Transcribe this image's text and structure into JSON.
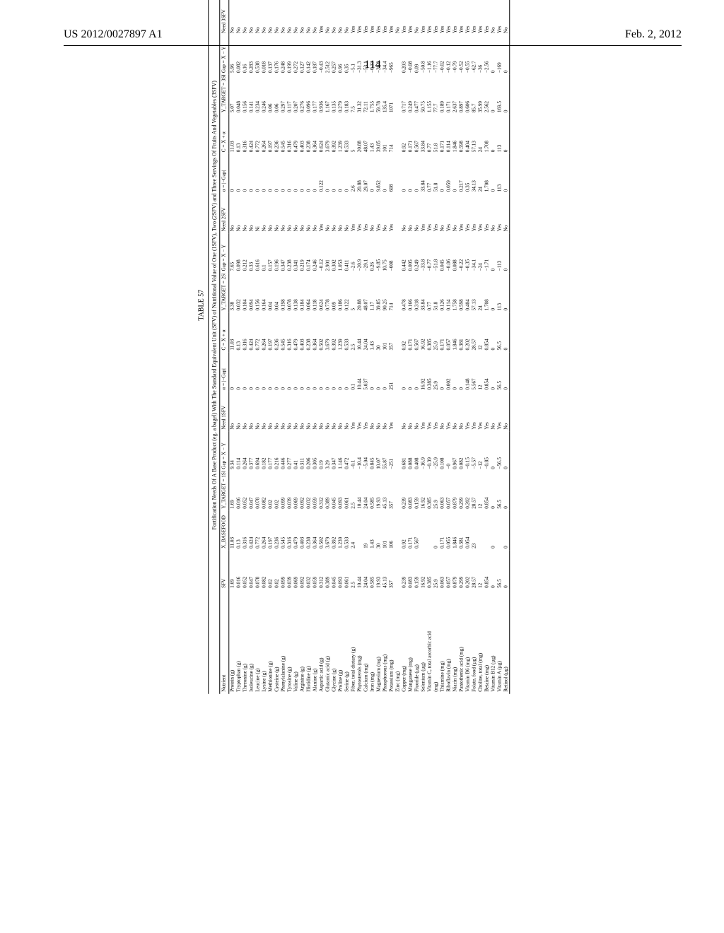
{
  "header": {
    "left": "US 2012/0027897 A1",
    "right": "Feb. 2, 2012"
  },
  "page_number": "114",
  "table": {
    "label": "TABLE 57",
    "subcaption": "Fortification Needs Of A Base Product (eg. a bagel) With The Standard Equivalent Unit (SFV) of Nutritional Value of One (1SFV), Two (2SFV) and Three Servings Of Fruits And Vegetables (3SFV)",
    "columns": [
      "Nutrient",
      "SFV",
      "X_BASEFOOD",
      "Y_TARGET = 1SFV",
      "Gap = X − Y",
      "Need 1SFV",
      "α = |−Gap|",
      "C = X + α",
      "Y_TARGET = 2SFV",
      "Gap = X − Y",
      "Need 2SFV",
      "α = |−Gap|",
      "C = X + α",
      "Y_TARGET = 3SFV",
      "Gap = X − Y",
      "Need 3SFV",
      "α = |−Gap|",
      "C = X + α"
    ],
    "rows": [
      [
        "Protein (g)",
        "1.69",
        "11.03",
        "1.69",
        "9.34",
        "No",
        "0",
        "11.03",
        "3.38",
        "7.65",
        "No",
        "0",
        "11.03",
        "5.07",
        "5.96",
        "No",
        "0",
        "11.03"
      ],
      [
        "Tryptophan (g)",
        "0.016",
        "0.13",
        "0.016",
        "0.114",
        "No",
        "0",
        "0.13",
        "0.032",
        "0.098",
        "No",
        "0",
        "0.13",
        "0.048",
        "0.082",
        "No",
        "0",
        "0.13"
      ],
      [
        "Threonine (g)",
        "0.052",
        "0.316",
        "0.052",
        "0.264",
        "No",
        "0",
        "0.316",
        "0.104",
        "0.212",
        "No",
        "0",
        "0.316",
        "0.156",
        "0.16",
        "No",
        "0",
        "0.316"
      ],
      [
        "Isoleucine (g)",
        "0.047",
        "0.424",
        "0.047",
        "0.377",
        "No",
        "0",
        "0.424",
        "0.094",
        "0.33",
        "No",
        "0",
        "0.424",
        "0.141",
        "0.283",
        "No",
        "0",
        "0.424"
      ],
      [
        "Leucine (g)",
        "0.078",
        "0.772",
        "0.078",
        "0.694",
        "No",
        "0",
        "0.772",
        "0.156",
        "0.616",
        "Ni",
        "0",
        "0.772",
        "0.234",
        "0.538",
        "No",
        "0",
        "0.772"
      ],
      [
        "Lysine (g)",
        "0.082",
        "0.264",
        "0.082",
        "0.182",
        "No",
        "0",
        "0.264",
        "0.164",
        "0.1",
        "No",
        "0",
        "0.264",
        "0.246",
        "0.018",
        "No",
        "0",
        "0.264"
      ],
      [
        "Methionine (g)",
        "0.02",
        "0.197",
        "0.02",
        "0.177",
        "No",
        "0",
        "0.197",
        "0.04",
        "0.157",
        "No",
        "0",
        "0.197",
        "0.06",
        "0.137",
        "No",
        "0",
        "0.197"
      ],
      [
        "Cysteine (g)",
        "0.02",
        "0.236",
        "0.02",
        "0.216",
        "No",
        "0",
        "0.236",
        "0.04",
        "0.196",
        "No",
        "0",
        "0.236",
        "0.06",
        "0.176",
        "No",
        "0",
        "0.236"
      ],
      [
        "Phenylalanine (g)",
        "0.099",
        "0.545",
        "0.099",
        "0.446",
        "No",
        "0",
        "0.545",
        "0.198",
        "0.347",
        "No",
        "0",
        "0.545",
        "0.297",
        "0.248",
        "No",
        "0",
        "0.545"
      ],
      [
        "Tyrosine (g)",
        "0.039",
        "0.316",
        "0.039",
        "0.277",
        "No",
        "0",
        "0.316",
        "0.078",
        "0.238",
        "No",
        "0",
        "0.316",
        "0.117",
        "0.199",
        "No",
        "0",
        "0.316"
      ],
      [
        "Valine (g)",
        "0.069",
        "0.479",
        "0.069",
        "0.41",
        "No",
        "0",
        "0.479",
        "0.138",
        "0.341",
        "No",
        "0",
        "0.479",
        "0.207",
        "0.272",
        "No",
        "0",
        "0.479"
      ],
      [
        "Arginine (g)",
        "0.092",
        "0.403",
        "0.092",
        "0.311",
        "No",
        "0",
        "0.403",
        "0.184",
        "0.219",
        "No",
        "0",
        "0.403",
        "0.276",
        "0.127",
        "No",
        "0",
        "0.403"
      ],
      [
        "Histidine (g)",
        "0.032",
        "0.238",
        "0.032",
        "0.206",
        "No",
        "0",
        "0.238",
        "0.064",
        "0.174",
        "No",
        "0",
        "0.238",
        "0.096",
        "0.142",
        "No",
        "0",
        "0.238"
      ],
      [
        "Alanine (g)",
        "0.059",
        "0.364",
        "0.059",
        "0.305",
        "No",
        "0",
        "0.364",
        "0.118",
        "0.246",
        "No",
        "0",
        "0.364",
        "0.177",
        "0.187",
        "No",
        "0",
        "0.364"
      ],
      [
        "Aspartic acid (g)",
        "0.312",
        "0.502",
        "0.312",
        "0.19",
        "No",
        "0",
        "0.502",
        "0.624",
        "−0.12",
        "Yes",
        "0.122",
        "0.624",
        "0.936",
        "−0.43",
        "Yes",
        "0.434",
        "0.936"
      ],
      [
        "Glutamic acid (g)",
        "0.389",
        "3.679",
        "0.389",
        "3.29",
        "No",
        "0",
        "3.679",
        "0.778",
        "2.901",
        "No",
        "0",
        "3.679",
        "1.167",
        "2.512",
        "No",
        "0",
        "3.679"
      ],
      [
        "Glycine (g)",
        "0.045",
        "0.392",
        "0.045",
        "0.347",
        "No",
        "0",
        "0.392",
        "0.09",
        "0.302",
        "No",
        "0",
        "0.392",
        "0.135",
        "0.257",
        "No",
        "0",
        "0.392"
      ],
      [
        "Proline (g)",
        "0.093",
        "1.239",
        "0.093",
        "1.146",
        "No",
        "0",
        "1.239",
        "0.186",
        "1.053",
        "No",
        "0",
        "1.239",
        "0.279",
        "0.96",
        "No",
        "0",
        "1.239"
      ],
      [
        "Serine (g)",
        "0.061",
        "0.533",
        "0.061",
        "0.472",
        "No",
        "0",
        "0.533",
        "0.122",
        "0.411",
        "No",
        "0",
        "0.533",
        "0.183",
        "0.35",
        "No",
        "0",
        "0.533"
      ],
      [
        "Fiber, total dietary (g)",
        "2.5",
        "2.4",
        "2.5",
        "−0.1",
        "Yes",
        "0.1",
        "2.5",
        "5",
        "−2.6",
        "Yes",
        "2.6",
        "5",
        "7.5",
        "−5.1",
        "Yes",
        "5.1",
        "7.5"
      ],
      [
        "Phytosterols (mg)",
        "10.44",
        "",
        "10.44",
        "−10.4",
        "Yes",
        "10.44",
        "10.44",
        "20.88",
        "−20.9",
        "Yes",
        "20.88",
        "20.88",
        "31.32",
        "−31.3",
        "Yes",
        "31.32",
        "31.32"
      ],
      [
        "Calcium (mg)",
        "24.04",
        "19",
        "24.04",
        "−5.04",
        "Yes",
        "5.037",
        "24.04",
        "48.07",
        "−29.1",
        "Yes",
        "29.07",
        "48.07",
        "72.11",
        "−53.1",
        "Yes",
        "53.11",
        "72.11"
      ],
      [
        "Iron (mg)",
        "0.585",
        "1.43",
        "0.585",
        "0.845",
        "No",
        "0",
        "1.43",
        "1.17",
        "0.26",
        "No",
        "0",
        "1.43",
        "1.755",
        "−0.33",
        "Yes",
        "0",
        "1.43"
      ],
      [
        "Magnesium (mg)",
        "19.93",
        "30",
        "19.93",
        "10.07",
        "No",
        "0",
        "30",
        "39.85",
        "−9.85",
        "Yes",
        "9.852",
        "39.85",
        "59.78",
        "−29.8",
        "Yes",
        "0",
        "30"
      ],
      [
        "Phosphorous (mg)",
        "45.13",
        "101",
        "45.13",
        "55.87",
        "No",
        "0",
        "101",
        "90.25",
        "10.75",
        "No",
        "0",
        "101",
        "135.4",
        "−34.4",
        "Yes",
        "0",
        "101"
      ],
      [
        "Potassium (mg)",
        "357",
        "106",
        "357",
        "−251",
        "Yes",
        "251",
        "357",
        "714",
        "−608",
        "Yes",
        "608",
        "714",
        "1071",
        "−965",
        "Yes",
        "965",
        "1071"
      ],
      [
        "Zinc (mg)",
        "",
        "",
        "",
        "",
        "",
        "",
        "",
        "",
        "",
        "",
        "",
        "",
        "",
        "",
        "No",
        "",
        ""
      ],
      [
        "Copper (mg)",
        "0.239",
        "0.92",
        "0.239",
        "0.681",
        "No",
        "0",
        "0.92",
        "0.478",
        "0.442",
        "No",
        "0",
        "0.92",
        "0.717",
        "0.203",
        "Yes",
        "0",
        "0.92"
      ],
      [
        "Manganese (mg)",
        "0.083",
        "0.171",
        "0.083",
        "0.088",
        "No",
        "0",
        "0.171",
        "0.166",
        "0.005",
        "No",
        "0",
        "0.171",
        "0.249",
        "−0.08",
        "Yes",
        "0",
        "0.171"
      ],
      [
        "Fluoride (µg)",
        "0.159",
        "0.567",
        "0.159",
        "0.408",
        "No",
        "0",
        "0.567",
        "0.318",
        "0.249",
        "No",
        "0",
        "0.567",
        "0.477",
        "0.09",
        "No",
        "0",
        "0.567"
      ],
      [
        "Selenium (µg)",
        "16.92",
        "",
        "16.92",
        "−16.9",
        "Yes",
        "16.92",
        "16.92",
        "33.84",
        "−33.8",
        "Yes",
        "33.84",
        "33.84",
        "50.75",
        "−50.8",
        "Yes",
        "50.75",
        "50.75"
      ],
      [
        "Vitamin C, total ascorbic acid",
        "0.385",
        "",
        "0.385",
        "−0.39",
        "Yes",
        "0.385",
        "0.385",
        "0.77",
        "−0.77",
        "Yes",
        "0.77",
        "0.77",
        "1.155",
        "−1.16",
        "Yes",
        "1.155",
        "1.155"
      ],
      [
        "(mg)",
        "25.9",
        "0",
        "25.9",
        "−25.9",
        "Yes",
        "25.9",
        "25.9",
        "51.8",
        "−51.8",
        "Yes",
        "51.8",
        "51.8",
        "77.7",
        "−77.7",
        "Yes",
        "77.7",
        "77.7"
      ],
      [
        "Thiamine (mg)",
        "0.063",
        "0.171",
        "0.063",
        "0.108",
        "No",
        "0",
        "0.171",
        "0.126",
        "0.045",
        "No",
        "0",
        "0.171",
        "0.189",
        "−0.02",
        "Yes",
        "0.018",
        "0.189"
      ],
      [
        "Riboflavin (mg)",
        "0.057",
        "0.055",
        "0.057",
        "−0",
        "Yes",
        "0.002",
        "0.057",
        "0.114",
        "−0.06",
        "Yes",
        "0.059",
        "0.114",
        "0.171",
        "−0.12",
        "Yes",
        "0.116",
        "0.171"
      ],
      [
        "Niacin (mg)",
        "0.879",
        "1.846",
        "0.879",
        "0.967",
        "No",
        "0",
        "1.846",
        "1.758",
        "0.088",
        "No",
        "0",
        "1.846",
        "2.637",
        "−0.79",
        "Yes",
        "0.791",
        "2.637"
      ],
      [
        "Pantothenic acid (mg)",
        "0.299",
        "0.381",
        "0.299",
        "0.082",
        "No",
        "0",
        "0.381",
        "0.598",
        "−0.22",
        "Yes",
        "0.217",
        "0.598",
        "0.897",
        "−0.52",
        "Yes",
        "0.516",
        "0.897"
      ],
      [
        "Vitamin B6 (mg)",
        "0.202",
        "0.054",
        "0.202",
        "−0.15",
        "Yes",
        "0.148",
        "0.202",
        "0.404",
        "−0.35",
        "Yes",
        "0.35",
        "0.404",
        "0.606",
        "−0.55",
        "Yes",
        "0.552",
        "0.606"
      ],
      [
        "Folate, food (µg)",
        "28.57",
        "23",
        "28.57",
        "−5.57",
        "Yes",
        "5.567",
        "28.57",
        "57.13",
        "−34.1",
        "Yes",
        "34.13",
        "57.13",
        "85.7",
        "−62.7",
        "Yes",
        "62.7",
        "85.7"
      ],
      [
        "Choline, total (mg)",
        "12",
        "",
        "12",
        "−12",
        "Yes",
        "12",
        "12",
        "24",
        "−24",
        "Yes",
        "24",
        "24",
        "35.99",
        "−36",
        "Yes",
        "35.99",
        "35.99"
      ],
      [
        "Betaine (mg)",
        "0.854",
        "",
        "0.854",
        "−0.85",
        "Yes",
        "0.854",
        "0.854",
        "1.708",
        "−1.71",
        "Yes",
        "1.708",
        "1.708",
        "2.562",
        "−2.56",
        "Yes",
        "2.562",
        "2.562"
      ],
      [
        "Vitamin B12 (µg)",
        "0",
        "0",
        "0",
        "0",
        "No",
        "0",
        "0",
        "0",
        "0",
        "No",
        "0",
        "0",
        "0",
        "0",
        "No",
        "0",
        "0"
      ],
      [
        "Vitamin A (µg)",
        "56.5",
        "",
        "56.5",
        "−56.5",
        "Yes",
        "56.5",
        "56.5",
        "113",
        "−113",
        "Yes",
        "113",
        "113",
        "169.5",
        "−169",
        "Yes",
        "169.5",
        "169.5"
      ],
      [
        "Retinol (µg)",
        "0",
        "0",
        "0",
        "0",
        "No",
        "0",
        "0",
        "0",
        "0",
        "No",
        "0",
        "0",
        "0",
        "0",
        "No",
        "0",
        "0"
      ]
    ]
  }
}
